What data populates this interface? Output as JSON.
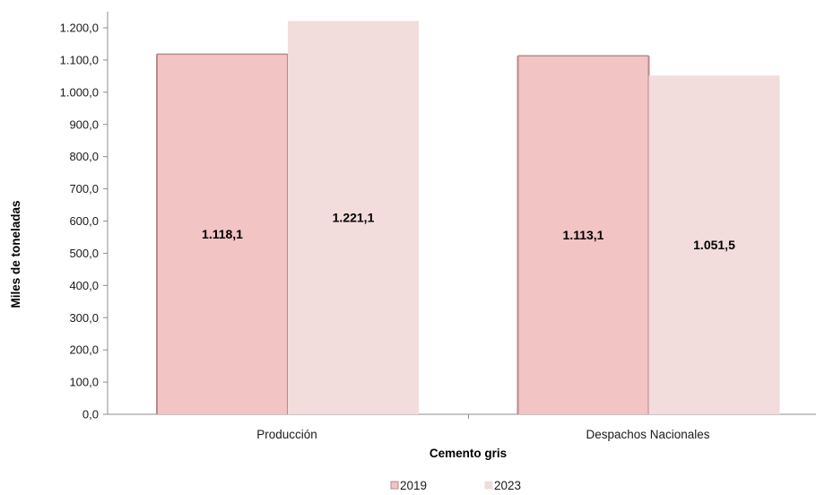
{
  "chart_data": {
    "type": "bar",
    "categories": [
      "Producción",
      "Despachos Nacionales"
    ],
    "series": [
      {
        "name": "2019",
        "values": [
          1118.1,
          1113.1
        ],
        "labels": [
          "1.118,1",
          "1.113,1"
        ],
        "color": "#f2c4c4",
        "edge": "#b88a8a"
      },
      {
        "name": "2023",
        "values": [
          1221.1,
          1051.5
        ],
        "labels": [
          "1.221,1",
          "1.051,5"
        ],
        "color": "#f2dcdc",
        "edge": "#f2dcdc"
      }
    ],
    "xlabel": "Cemento gris",
    "ylabel": "Miles de toneladas",
    "ylim": [
      0,
      1200
    ],
    "yticks": [
      0,
      100,
      200,
      300,
      400,
      500,
      600,
      700,
      800,
      900,
      1000,
      1100,
      1200
    ],
    "ytick_labels": [
      "0,0",
      "100,0",
      "200,0",
      "300,0",
      "400,0",
      "500,0",
      "600,0",
      "700,0",
      "800,0",
      "900,0",
      "1.000,0",
      "1.100,0",
      "1.200,0"
    ],
    "grid": false,
    "legend_position": "bottom"
  }
}
